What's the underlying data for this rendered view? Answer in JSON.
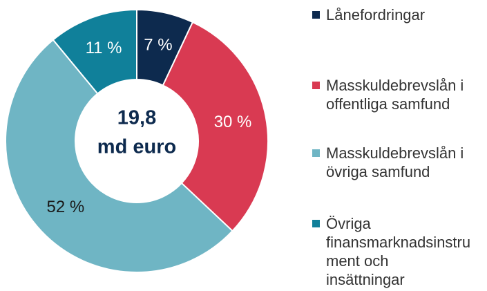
{
  "chart_data": {
    "type": "donut",
    "center_text": [
      "19,8",
      "md euro"
    ],
    "categories": [
      "Lånefordringar",
      "Masskuldebrevslån i offentliga samfund",
      "Masskuldebrevslån i övriga samfund",
      "Övriga finansmarknadsinstrument och insättningar"
    ],
    "values": [
      7,
      30,
      52,
      11
    ],
    "value_labels": [
      "7 %",
      "30 %",
      "52 %",
      "11 %"
    ],
    "colors": [
      "#0d2a4e",
      "#d93a52",
      "#6fb5c4",
      "#10809a"
    ],
    "label_colors": [
      "#ffffff",
      "#ffffff",
      "#1a1a1a",
      "#ffffff"
    ],
    "legend": "right"
  }
}
